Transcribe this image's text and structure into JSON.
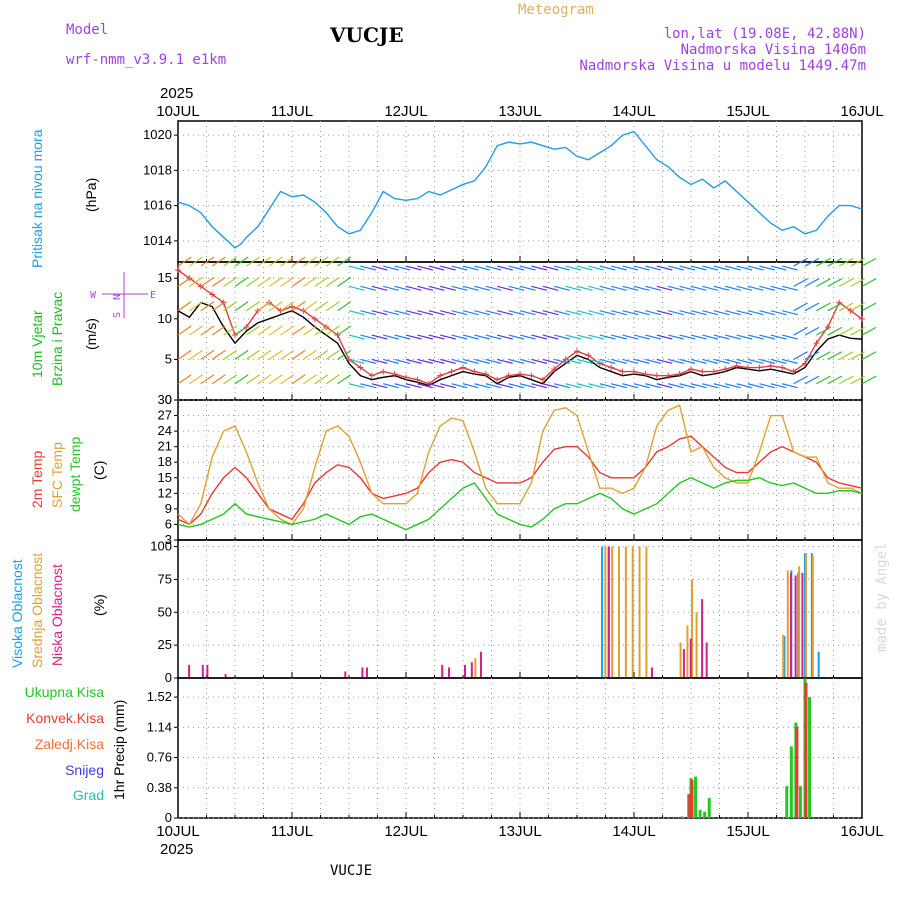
{
  "header": {
    "model_label": "Model",
    "model_name": "wrf-nmm_v3.9.1 e1km",
    "station": "VUCJE",
    "chart_title": "Meteogram",
    "coords": "lon,lat (19.08E, 42.88N)",
    "elevation": "Nadmorska Visina 1406m",
    "model_elevation": "Nadmorska Visina u modelu 1449.47m",
    "year_top": "2025",
    "year_bottom": "2025",
    "footer_station": "VUCJE",
    "credit": "made by Angel"
  },
  "colors": {
    "pressure": "#1ea0e0",
    "wind_axis_green": "#22bb22",
    "temp2m": "#e83a30",
    "sfc_temp": "#e0a030",
    "dewpoint": "#22c822",
    "cloud_high": "#1aa0e8",
    "cloud_mid": "#e0a030",
    "cloud_low": "#d0208a",
    "precip_total": "#22c822",
    "precip_conv": "#e83a30",
    "precip_frozen": "#f07030",
    "snow": "#3a3ae0",
    "graupel": "#22c0b0",
    "header_purple": "#a040e0",
    "header_orange": "#e0b060"
  },
  "chart_data": [
    {
      "type": "line",
      "panel": "pressure",
      "ylabel_main": "Pritisak na nivou mora",
      "unit": "(hPa)",
      "ylim": [
        1012.8,
        1020.8
      ],
      "yticks": [
        1014,
        1016,
        1018,
        1020
      ],
      "xlim_days": [
        0,
        6
      ],
      "x": [
        0.0,
        0.1,
        0.2,
        0.3,
        0.4,
        0.5,
        0.55,
        0.6,
        0.7,
        0.8,
        0.9,
        1.0,
        1.1,
        1.2,
        1.3,
        1.4,
        1.5,
        1.55,
        1.6,
        1.7,
        1.8,
        1.9,
        2.0,
        2.1,
        2.2,
        2.3,
        2.4,
        2.5,
        2.6,
        2.7,
        2.8,
        2.9,
        3.0,
        3.1,
        3.2,
        3.3,
        3.4,
        3.5,
        3.6,
        3.7,
        3.8,
        3.9,
        4.0,
        4.1,
        4.2,
        4.3,
        4.4,
        4.5,
        4.6,
        4.7,
        4.8,
        4.9,
        5.0,
        5.1,
        5.2,
        5.3,
        5.4,
        5.5,
        5.6,
        5.7,
        5.8,
        5.9,
        6.0
      ],
      "series": [
        {
          "values": [
            1016.2,
            1016.0,
            1015.6,
            1014.8,
            1014.2,
            1013.6,
            1013.8,
            1014.2,
            1014.8,
            1015.8,
            1016.8,
            1016.5,
            1016.6,
            1016.2,
            1015.6,
            1014.8,
            1014.4,
            1014.5,
            1014.6,
            1015.6,
            1016.8,
            1016.4,
            1016.3,
            1016.4,
            1016.8,
            1016.6,
            1016.9,
            1017.2,
            1017.4,
            1018.2,
            1019.4,
            1019.6,
            1019.5,
            1019.6,
            1019.4,
            1019.2,
            1019.3,
            1018.8,
            1018.6,
            1019.0,
            1019.4,
            1020.0,
            1020.2,
            1019.4,
            1018.6,
            1018.2,
            1017.6,
            1017.2,
            1017.5,
            1017.0,
            1017.4,
            1016.8,
            1016.2,
            1015.6,
            1015.0,
            1014.6,
            1014.8,
            1014.4,
            1014.6,
            1015.4,
            1016.0,
            1016.0,
            1015.8
          ]
        }
      ]
    },
    {
      "type": "line",
      "panel": "wind",
      "ylabel_main": "10m Vjetar",
      "ylabel_sub": "Brzina i Pravac",
      "unit": "(m/s)",
      "compass": {
        "north": "N",
        "east": "E",
        "west": "W",
        "south": "S"
      },
      "ylim": [
        0,
        17
      ],
      "yticks": [
        0,
        5,
        10,
        15
      ],
      "x": [
        0.0,
        0.1,
        0.2,
        0.3,
        0.4,
        0.5,
        0.6,
        0.7,
        0.8,
        0.9,
        1.0,
        1.1,
        1.2,
        1.3,
        1.4,
        1.5,
        1.6,
        1.7,
        1.8,
        1.9,
        2.0,
        2.1,
        2.2,
        2.3,
        2.4,
        2.5,
        2.6,
        2.7,
        2.8,
        2.9,
        3.0,
        3.1,
        3.2,
        3.3,
        3.4,
        3.5,
        3.6,
        3.7,
        3.8,
        3.9,
        4.0,
        4.1,
        4.2,
        4.3,
        4.4,
        4.5,
        4.6,
        4.7,
        4.8,
        4.9,
        5.0,
        5.1,
        5.2,
        5.3,
        5.4,
        5.5,
        5.6,
        5.7,
        5.8,
        5.9,
        6.0
      ],
      "series": [
        {
          "name": "wind speed",
          "values": [
            11.0,
            10.2,
            12.0,
            11.5,
            9.0,
            7.0,
            8.5,
            9.5,
            10.0,
            10.5,
            11.0,
            10.2,
            9.0,
            8.0,
            7.0,
            4.5,
            3.0,
            2.5,
            2.8,
            3.0,
            2.5,
            2.2,
            1.8,
            2.5,
            3.0,
            3.5,
            3.2,
            3.0,
            2.0,
            2.8,
            3.0,
            2.5,
            2.0,
            3.5,
            4.5,
            5.5,
            5.0,
            4.0,
            3.5,
            3.0,
            3.2,
            3.0,
            2.5,
            2.8,
            3.0,
            3.5,
            3.0,
            3.2,
            3.5,
            4.0,
            3.8,
            3.6,
            3.8,
            3.5,
            3.2,
            4.0,
            6.0,
            7.5,
            8.0,
            7.6,
            7.5
          ]
        },
        {
          "name": "gust",
          "values": [
            16.0,
            15.0,
            14.0,
            13.0,
            12.0,
            8.0,
            9.0,
            11.0,
            12.0,
            11.0,
            11.5,
            11.0,
            10.0,
            9.0,
            8.0,
            5.0,
            4.0,
            3.0,
            3.5,
            3.2,
            2.8,
            2.5,
            2.0,
            3.0,
            3.5,
            4.0,
            3.5,
            3.2,
            2.5,
            3.0,
            3.2,
            3.0,
            2.5,
            3.8,
            5.0,
            6.0,
            5.5,
            4.5,
            4.0,
            3.5,
            3.5,
            3.2,
            3.0,
            3.0,
            3.2,
            3.8,
            3.5,
            3.5,
            3.8,
            4.2,
            4.0,
            4.0,
            4.2,
            4.0,
            3.5,
            4.5,
            7.0,
            9.0,
            12.0,
            11.0,
            10.0
          ]
        }
      ]
    },
    {
      "type": "line",
      "panel": "temperature",
      "ylabels": [
        "2m Temp",
        "SFC Temp",
        "dewpt Temp"
      ],
      "unit": "(C)",
      "ylim": [
        3,
        30
      ],
      "yticks": [
        3,
        6,
        9,
        12,
        15,
        18,
        21,
        24,
        27,
        30
      ],
      "x": [
        0.0,
        0.1,
        0.2,
        0.3,
        0.4,
        0.5,
        0.6,
        0.7,
        0.8,
        0.9,
        1.0,
        1.1,
        1.2,
        1.3,
        1.4,
        1.5,
        1.6,
        1.7,
        1.8,
        1.9,
        2.0,
        2.1,
        2.2,
        2.3,
        2.4,
        2.5,
        2.6,
        2.7,
        2.8,
        2.9,
        3.0,
        3.1,
        3.2,
        3.3,
        3.4,
        3.5,
        3.6,
        3.7,
        3.8,
        3.9,
        4.0,
        4.1,
        4.2,
        4.3,
        4.4,
        4.5,
        4.6,
        4.7,
        4.8,
        4.9,
        5.0,
        5.1,
        5.2,
        5.3,
        5.4,
        5.5,
        5.6,
        5.7,
        5.8,
        5.9,
        6.0
      ],
      "series": [
        {
          "name": "2m Temp",
          "values": [
            7,
            6,
            8,
            12,
            15,
            17,
            15,
            12,
            9,
            8,
            7,
            10,
            14,
            16,
            17.5,
            17,
            15,
            12,
            11,
            11.5,
            12,
            13,
            16,
            18,
            18.5,
            18,
            16,
            15,
            14,
            14,
            14,
            15,
            18,
            20.5,
            21,
            21,
            19,
            16,
            15,
            15,
            15,
            17,
            20,
            21,
            22.5,
            23,
            21,
            19,
            17,
            16,
            16,
            18,
            20,
            21,
            20,
            19,
            18,
            15,
            14,
            13.5,
            13
          ]
        },
        {
          "name": "SFC Temp",
          "values": [
            8,
            6,
            10,
            19,
            24,
            25,
            20,
            14,
            9,
            7,
            6,
            9,
            17,
            24,
            25,
            23,
            18,
            12,
            10,
            10,
            10,
            12,
            20,
            25,
            26.5,
            26,
            20,
            13,
            10,
            10,
            10,
            14,
            24,
            28,
            28.5,
            27,
            20,
            13,
            13,
            12,
            13,
            17,
            25,
            28,
            29,
            20,
            21,
            17,
            15,
            14,
            14,
            20,
            27,
            27,
            20,
            19,
            19,
            14,
            13,
            13,
            12
          ]
        },
        {
          "name": "dewpt Temp",
          "values": [
            6,
            5.5,
            6,
            7,
            8,
            10,
            8,
            7.5,
            7,
            6.5,
            6,
            6.5,
            7,
            8,
            7,
            6,
            7.5,
            8,
            7,
            6,
            5,
            6,
            7,
            9,
            11,
            13,
            14,
            11,
            8,
            7,
            6,
            5.5,
            7,
            9,
            10,
            10,
            11,
            12,
            11,
            9,
            8,
            9,
            10,
            12,
            14,
            15,
            14,
            13,
            14,
            14.5,
            14.5,
            15,
            14,
            13.5,
            14,
            13,
            12,
            12,
            12.5,
            12.5,
            12
          ]
        }
      ]
    },
    {
      "type": "bar",
      "panel": "cloud",
      "ylabels": [
        "Visoka Oblacnost",
        "Srednja Oblacnost",
        "Niska Oblacnost"
      ],
      "unit": "(%)",
      "ylim": [
        0,
        105
      ],
      "yticks": [
        0,
        25,
        50,
        75,
        100
      ],
      "series": [
        {
          "name": "Visoka Oblacnost",
          "x": [
            3.72,
            3.78,
            5.32,
            5.38,
            5.44,
            5.5,
            5.56,
            5.62
          ],
          "values": [
            100,
            100,
            32,
            82,
            80,
            95,
            95,
            20
          ]
        },
        {
          "name": "Srednja Oblacnost",
          "x": [
            2.6,
            3.74,
            3.8,
            3.86,
            3.92,
            3.98,
            4.04,
            4.1,
            4.4,
            4.46,
            4.5,
            4.54,
            5.3,
            5.34,
            5.44,
            5.5,
            5.56
          ],
          "values": [
            15,
            100,
            100,
            100,
            100,
            100,
            100,
            100,
            27,
            40,
            75,
            50,
            33,
            82,
            85,
            95,
            93
          ]
        },
        {
          "name": "Niska Oblacnost",
          "x": [
            0.08,
            0.2,
            0.24,
            0.4,
            1.45,
            1.6,
            1.64,
            2.3,
            2.36,
            2.5,
            2.56,
            2.64,
            3.76,
            4.14,
            4.42,
            4.48,
            4.58,
            4.62,
            5.36,
            5.4,
            5.46
          ],
          "values": [
            10,
            10,
            10,
            3,
            5,
            8,
            8,
            10,
            8,
            10,
            12,
            20,
            100,
            8,
            22,
            30,
            60,
            27,
            80,
            78,
            80
          ]
        }
      ]
    },
    {
      "type": "bar",
      "panel": "precip",
      "ylabels": [
        "Ukupna Kisa",
        "Konvek.Kisa",
        "Zaledj.Kisa",
        "Snijeg",
        "Grad"
      ],
      "unit": "1hr Precip (mm)",
      "ylim": [
        0,
        1.76
      ],
      "yticks": [
        0,
        0.38,
        0.76,
        1.14,
        1.52
      ],
      "series": [
        {
          "name": "Ukupna Kisa",
          "x": [
            4.42,
            4.48,
            4.5,
            4.54,
            4.58,
            4.62,
            4.66,
            5.34,
            5.38,
            5.42,
            5.46,
            5.5,
            5.54,
            5.58
          ],
          "values": [
            0.02,
            0.3,
            0.5,
            0.52,
            0.1,
            0.08,
            0.25,
            0.4,
            0.9,
            1.2,
            0.4,
            1.75,
            1.52,
            0.0
          ]
        },
        {
          "name": "Konvek.Kisa",
          "x": [
            4.48,
            4.5,
            5.42,
            5.5
          ],
          "values": [
            0.3,
            0.48,
            1.15,
            1.7
          ]
        }
      ]
    }
  ],
  "axis": {
    "date_labels": [
      "10JUL",
      "11JUL",
      "12JUL",
      "13JUL",
      "14JUL",
      "15JUL",
      "16JUL"
    ]
  }
}
